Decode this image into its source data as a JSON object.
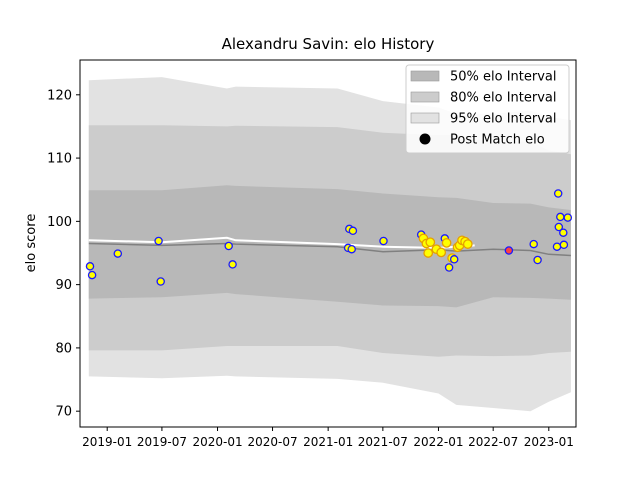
{
  "chart_data": {
    "type": "line",
    "title": "Alexandru Savin: elo History",
    "ylabel": "elo score",
    "xlabel": "",
    "ylim": [
      67.5,
      125.5
    ],
    "xlim": [
      "2018-10-03",
      "2023-04-01"
    ],
    "y_ticks": [
      70,
      80,
      90,
      100,
      110,
      120
    ],
    "x_ticks": [
      "2019-01",
      "2019-07",
      "2020-01",
      "2020-07",
      "2021-01",
      "2021-07",
      "2022-01",
      "2022-07",
      "2023-01"
    ],
    "legend": {
      "position": "top-right",
      "entries": [
        "50% elo Interval",
        "80% elo Interval",
        "95% elo Interval",
        "Post Match elo"
      ]
    },
    "colors": {
      "band95": "#e2e2e2",
      "band80": "#cccccc",
      "band50": "#b8b8b8",
      "mean_line": "#ffffff",
      "median_line": "#808080",
      "point_fill": "#ffff00",
      "point_edge": "#1a1aff",
      "win_edge": "#e6a000",
      "last_fill": "#ff4040"
    },
    "bands": {
      "dates": [
        "2018-11-01",
        "2019-07-01",
        "2020-02-01",
        "2020-03-01",
        "2021-02-01",
        "2021-07-01",
        "2022-01-01",
        "2022-03-01",
        "2022-07-01",
        "2022-11-01",
        "2023-01-01",
        "2023-03-15"
      ],
      "p95_upper": [
        122.3,
        122.8,
        121.0,
        121.3,
        121.0,
        119.0,
        118.0,
        117.0,
        117.0,
        117.5,
        116.5,
        116.0
      ],
      "p80_upper": [
        115.2,
        115.2,
        115.0,
        115.1,
        114.9,
        114.0,
        113.6,
        113.6,
        112.4,
        112.6,
        111.2,
        110.6
      ],
      "p50_upper": [
        104.9,
        104.9,
        105.7,
        105.6,
        105.1,
        104.4,
        103.8,
        103.7,
        102.9,
        102.8,
        102.2,
        101.8
      ],
      "median": [
        96.5,
        96.2,
        96.5,
        96.4,
        96.0,
        95.2,
        95.5,
        95.3,
        95.6,
        95.4,
        94.8,
        94.6
      ],
      "p50_lower": [
        87.8,
        88.0,
        88.7,
        88.5,
        87.3,
        86.7,
        86.6,
        86.4,
        88.0,
        87.9,
        87.8,
        87.6
      ],
      "p80_lower": [
        79.6,
        79.6,
        80.3,
        80.3,
        80.3,
        79.2,
        78.6,
        78.8,
        78.7,
        78.8,
        79.2,
        79.4
      ],
      "p95_lower": [
        75.5,
        75.2,
        75.6,
        75.5,
        75.1,
        74.5,
        72.8,
        71.0,
        70.5,
        70.0,
        71.5,
        73.0
      ]
    },
    "mean_line": {
      "dates": [
        "2018-11-01",
        "2019-07-01",
        "2020-02-01",
        "2020-03-01",
        "2021-02-01",
        "2021-07-01",
        "2022-01-01",
        "2022-03-01",
        "2022-05-01"
      ],
      "values": [
        97.0,
        96.7,
        97.4,
        97.0,
        96.4,
        96.0,
        95.8,
        96.0,
        96.2
      ]
    },
    "points": [
      {
        "date": "2018-11-05",
        "elo": 92.9,
        "kind": "normal"
      },
      {
        "date": "2018-11-12",
        "elo": 91.5,
        "kind": "normal"
      },
      {
        "date": "2019-02-05",
        "elo": 94.9,
        "kind": "normal"
      },
      {
        "date": "2019-06-20",
        "elo": 96.9,
        "kind": "normal"
      },
      {
        "date": "2019-06-27",
        "elo": 90.5,
        "kind": "normal"
      },
      {
        "date": "2020-02-07",
        "elo": 96.1,
        "kind": "normal"
      },
      {
        "date": "2020-02-20",
        "elo": 93.2,
        "kind": "normal"
      },
      {
        "date": "2021-03-08",
        "elo": 95.8,
        "kind": "normal"
      },
      {
        "date": "2021-03-12",
        "elo": 98.8,
        "kind": "normal"
      },
      {
        "date": "2021-03-20",
        "elo": 95.6,
        "kind": "normal"
      },
      {
        "date": "2021-03-24",
        "elo": 98.5,
        "kind": "normal"
      },
      {
        "date": "2021-07-03",
        "elo": 96.9,
        "kind": "normal"
      },
      {
        "date": "2021-11-05",
        "elo": 97.9,
        "kind": "normal"
      },
      {
        "date": "2021-11-12",
        "elo": 97.3,
        "kind": "win"
      },
      {
        "date": "2021-11-22",
        "elo": 96.5,
        "kind": "win"
      },
      {
        "date": "2021-11-28",
        "elo": 95.0,
        "kind": "win"
      },
      {
        "date": "2021-12-05",
        "elo": 96.7,
        "kind": "win"
      },
      {
        "date": "2021-12-25",
        "elo": 95.6,
        "kind": "win"
      },
      {
        "date": "2022-01-10",
        "elo": 95.1,
        "kind": "win"
      },
      {
        "date": "2022-01-22",
        "elo": 97.3,
        "kind": "normal"
      },
      {
        "date": "2022-01-28",
        "elo": 96.6,
        "kind": "win"
      },
      {
        "date": "2022-02-05",
        "elo": 92.7,
        "kind": "normal"
      },
      {
        "date": "2022-02-15",
        "elo": 94.2,
        "kind": "win"
      },
      {
        "date": "2022-02-22",
        "elo": 94.0,
        "kind": "normal"
      },
      {
        "date": "2022-03-05",
        "elo": 95.9,
        "kind": "win"
      },
      {
        "date": "2022-03-12",
        "elo": 96.2,
        "kind": "win"
      },
      {
        "date": "2022-03-20",
        "elo": 97.0,
        "kind": "win"
      },
      {
        "date": "2022-03-30",
        "elo": 96.8,
        "kind": "win"
      },
      {
        "date": "2022-04-08",
        "elo": 96.4,
        "kind": "win"
      },
      {
        "date": "2022-08-22",
        "elo": 95.4,
        "kind": "last"
      },
      {
        "date": "2022-11-12",
        "elo": 96.4,
        "kind": "normal"
      },
      {
        "date": "2022-11-25",
        "elo": 93.9,
        "kind": "normal"
      },
      {
        "date": "2023-01-28",
        "elo": 96.0,
        "kind": "normal"
      },
      {
        "date": "2023-02-01",
        "elo": 104.4,
        "kind": "normal"
      },
      {
        "date": "2023-02-03",
        "elo": 99.1,
        "kind": "normal"
      },
      {
        "date": "2023-02-08",
        "elo": 100.7,
        "kind": "normal"
      },
      {
        "date": "2023-02-18",
        "elo": 98.2,
        "kind": "normal"
      },
      {
        "date": "2023-02-20",
        "elo": 96.3,
        "kind": "normal"
      },
      {
        "date": "2023-03-05",
        "elo": 100.6,
        "kind": "normal"
      }
    ]
  }
}
